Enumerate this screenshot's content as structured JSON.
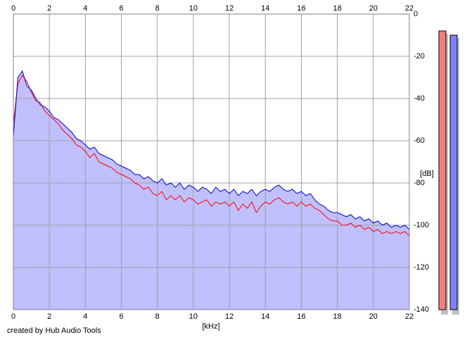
{
  "chart_data": {
    "type": "line",
    "x_label": "[kHz]",
    "y_label": "[dB]",
    "footer": "created by Hub Audio Tools",
    "xlim": [
      0,
      22
    ],
    "xticks": [
      0,
      2,
      4,
      6,
      8,
      10,
      12,
      14,
      16,
      18,
      20,
      22
    ],
    "ylim": [
      -140,
      0
    ],
    "yticks": [
      0,
      -20,
      -40,
      -60,
      -80,
      -100,
      -120,
      -140
    ],
    "grid": true,
    "area_color": "#c0c0ff",
    "x": [
      0,
      0.25,
      0.5,
      0.75,
      1,
      1.25,
      1.5,
      1.75,
      2,
      2.25,
      2.5,
      2.75,
      3,
      3.25,
      3.5,
      3.75,
      4,
      4.25,
      4.5,
      4.75,
      5,
      5.25,
      5.5,
      5.75,
      6,
      6.25,
      6.5,
      6.75,
      7,
      7.25,
      7.5,
      7.75,
      8,
      8.25,
      8.5,
      8.75,
      9,
      9.25,
      9.5,
      9.75,
      10,
      10.25,
      10.5,
      10.75,
      11,
      11.25,
      11.5,
      11.75,
      12,
      12.25,
      12.5,
      12.75,
      13,
      13.25,
      13.5,
      13.75,
      14,
      14.25,
      14.5,
      14.75,
      15,
      15.25,
      15.5,
      15.75,
      16,
      16.25,
      16.5,
      16.75,
      17,
      17.25,
      17.5,
      17.75,
      18,
      18.25,
      18.5,
      18.75,
      19,
      19.25,
      19.5,
      19.75,
      20,
      20.25,
      20.5,
      20.75,
      21,
      21.25,
      21.5,
      21.75,
      22
    ],
    "series": [
      {
        "color": "#ff0000",
        "values": [
          -52,
          -33,
          -29,
          -32,
          -37,
          -41,
          -42,
          -46,
          -48,
          -50,
          -52,
          -55,
          -57,
          -59,
          -62,
          -63,
          -65,
          -68,
          -66,
          -70,
          -71,
          -72,
          -73,
          -75,
          -76,
          -77,
          -78,
          -80,
          -81,
          -83,
          -82,
          -85,
          -86,
          -84,
          -88,
          -86,
          -88,
          -86,
          -89,
          -87,
          -88,
          -90,
          -89,
          -88,
          -91,
          -89,
          -90,
          -89,
          -91,
          -89,
          -93,
          -90,
          -92,
          -89,
          -94,
          -91,
          -89,
          -90,
          -88,
          -87,
          -89,
          -90,
          -89,
          -91,
          -89,
          -91,
          -90,
          -92,
          -93,
          -95,
          -97,
          -98,
          -98,
          -100,
          -100,
          -99,
          -101,
          -100,
          -102,
          -101,
          -103,
          -102,
          -104,
          -103,
          -104,
          -103,
          -104,
          -103,
          -105
        ]
      },
      {
        "color": "#0000cc",
        "values": [
          -58,
          -30,
          -27,
          -34,
          -36,
          -40,
          -43,
          -44,
          -46,
          -49,
          -50,
          -52,
          -54,
          -56,
          -59,
          -60,
          -62,
          -64,
          -63,
          -66,
          -67,
          -68,
          -69,
          -71,
          -72,
          -73,
          -74,
          -76,
          -76,
          -78,
          -77,
          -79,
          -80,
          -78,
          -81,
          -80,
          -82,
          -80,
          -83,
          -81,
          -82,
          -84,
          -82,
          -83,
          -85,
          -82,
          -84,
          -83,
          -85,
          -83,
          -86,
          -84,
          -85,
          -83,
          -86,
          -84,
          -83,
          -84,
          -82,
          -81,
          -83,
          -84,
          -83,
          -85,
          -84,
          -86,
          -85,
          -88,
          -90,
          -91,
          -93,
          -94,
          -94,
          -95,
          -96,
          -95,
          -97,
          -96,
          -98,
          -97,
          -99,
          -98,
          -100,
          -99,
          -101,
          -100,
          -101,
          -100,
          -102
        ]
      }
    ],
    "meters": [
      {
        "color": "#f08080",
        "value": -8
      },
      {
        "color": "#8080f0",
        "value": -10
      }
    ]
  }
}
